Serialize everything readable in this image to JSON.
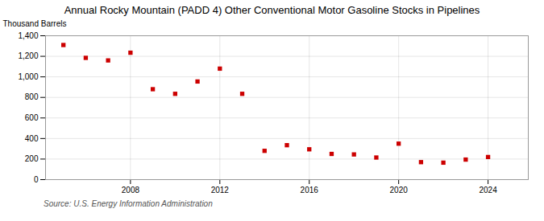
{
  "chart_data": {
    "type": "scatter",
    "title": "Annual Rocky Mountain (PADD 4) Other Conventional Motor Gasoline Stocks in Pipelines",
    "ylabel": "Thousand Barrels",
    "source": "Source: U.S. Energy Information Administration",
    "x": [
      2005,
      2006,
      2007,
      2008,
      2009,
      2010,
      2011,
      2012,
      2013,
      2014,
      2015,
      2016,
      2017,
      2018,
      2019,
      2020,
      2021,
      2022,
      2023,
      2024
    ],
    "values": [
      1310,
      1185,
      1160,
      1235,
      880,
      835,
      955,
      1080,
      835,
      280,
      335,
      295,
      250,
      245,
      215,
      350,
      170,
      165,
      195,
      220
    ],
    "color": "#cc0000",
    "marker": "square",
    "grid": true,
    "xlim": [
      2004.2,
      2025.8
    ],
    "xticks": [
      2008,
      2012,
      2016,
      2020,
      2024
    ],
    "ylim": [
      0,
      1400
    ],
    "yticks": [
      0,
      200,
      400,
      600,
      {
        "value": 800,
        "label": "800"
      },
      {
        "value": 1000,
        "label": "1,000"
      },
      {
        "value": 1200,
        "label": "1,200"
      },
      {
        "value": 1400,
        "label": "1,400"
      }
    ]
  }
}
